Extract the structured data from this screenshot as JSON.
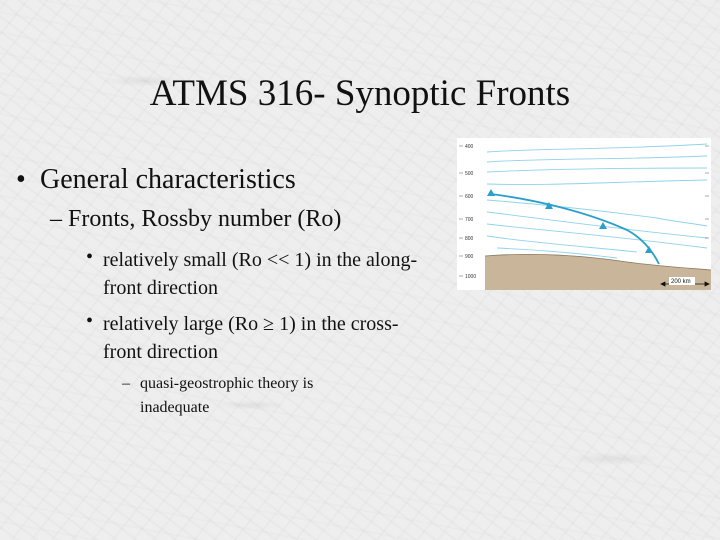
{
  "slide": {
    "title": "ATMS 316- Synoptic Fronts",
    "bullet1": "General characteristics",
    "bullet2": "Fronts, Rossby number (Ro)",
    "bullet3a": "relatively small (Ro << 1) in the along-front direction",
    "bullet3b": "relatively large (Ro ≥ 1) in the cross-front direction",
    "bullet4": "quasi-geostrophic theory is inadequate"
  },
  "figure": {
    "pressure_labels": [
      "400",
      "500",
      "600",
      "700",
      "800",
      "900",
      "1000"
    ],
    "scale_label": "200 km",
    "colors": {
      "front": "#2a9fc9",
      "isentropes": "#8fd3ea",
      "terrain": "#c8b59a",
      "arrow": "#111111"
    }
  }
}
